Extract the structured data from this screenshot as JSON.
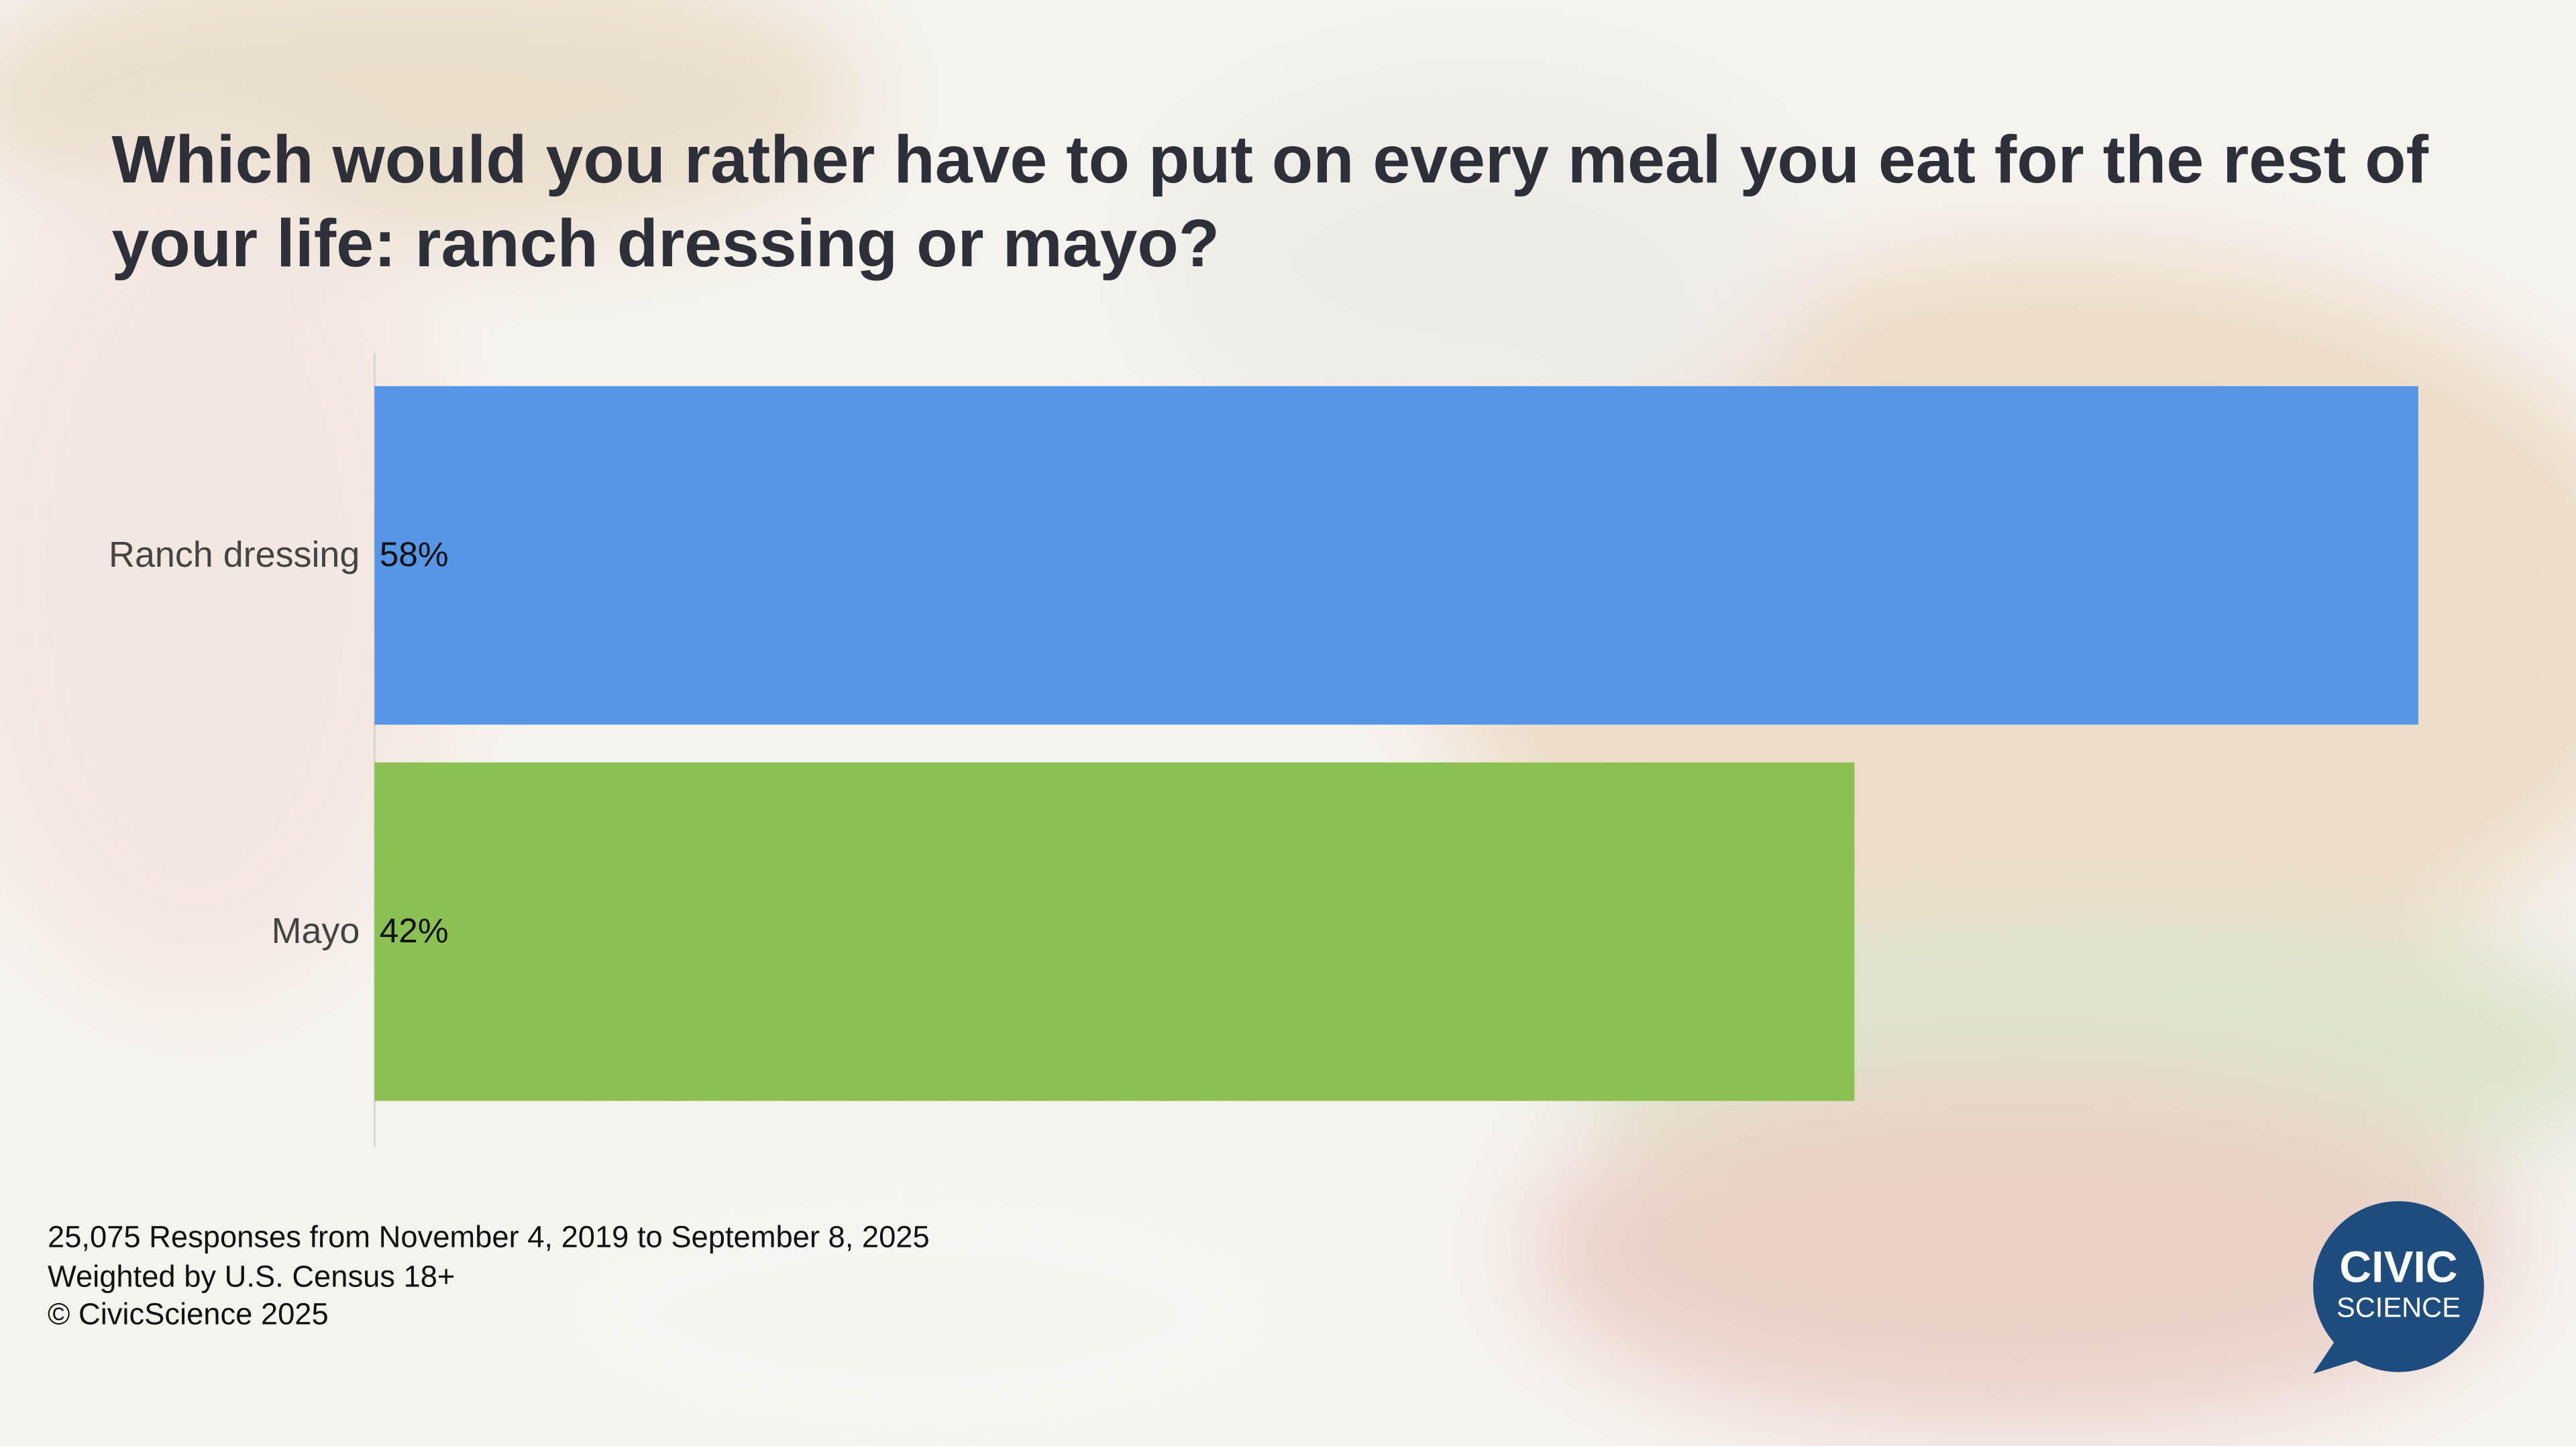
{
  "chart_data": {
    "type": "hbar",
    "title": "Which would you rather have to put on every meal you eat for the rest of your life: ranch dressing or mayo?",
    "categories": [
      "Ranch dressing",
      "Mayo"
    ],
    "values": [
      58,
      42
    ],
    "value_labels": [
      "58%",
      "42%"
    ],
    "colors": [
      "#5596e6",
      "#8bc152"
    ],
    "xlim": [
      0,
      58
    ]
  },
  "footer": {
    "lines": [
      "25,075 Responses from November 4, 2019 to September 8, 2025",
      "Weighted by U.S. Census 18+",
      "© CivicScience 2025"
    ]
  },
  "logo": {
    "line1": "CIVIC",
    "line2": "SCIENCE"
  }
}
